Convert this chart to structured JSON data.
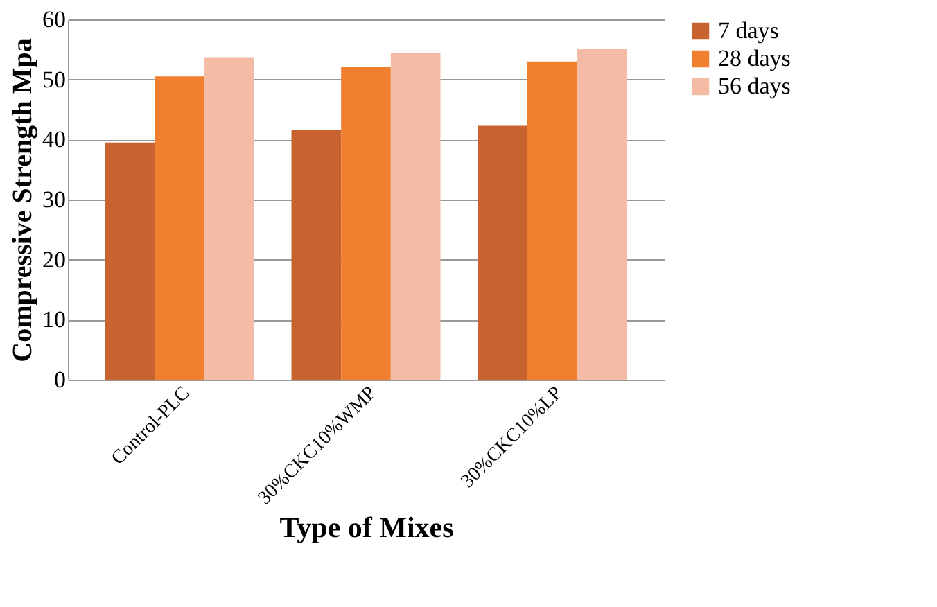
{
  "chart_data": {
    "type": "bar",
    "xlabel": "Type of Mixes",
    "ylabel": "Compressive Strength Mpa",
    "categories": [
      "Control-PLC",
      "30%CKC10%WMP",
      "30%CKC10%LP"
    ],
    "series": [
      {
        "name": "7 days",
        "color": "#c8622e",
        "values": [
          39.5,
          41.6,
          42.3
        ]
      },
      {
        "name": "28 days",
        "color": "#f07f30",
        "values": [
          50.5,
          52.1,
          53.0
        ]
      },
      {
        "name": "56 days",
        "color": "#f4bba5",
        "values": [
          53.7,
          54.4,
          55.1
        ]
      }
    ],
    "ylim": [
      0,
      60
    ],
    "yticks": [
      0,
      10,
      20,
      30,
      40,
      50,
      60
    ],
    "grid": "y",
    "legend": "right"
  }
}
